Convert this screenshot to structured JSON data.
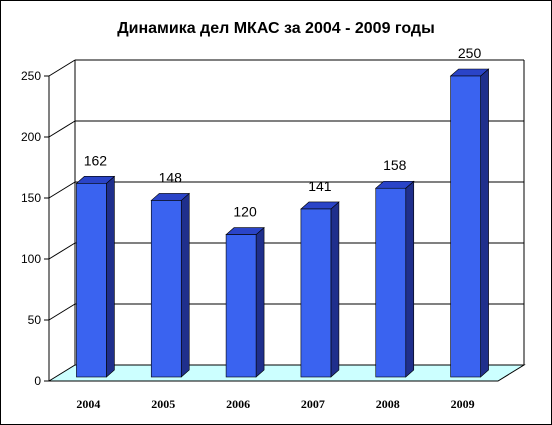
{
  "chart_data": {
    "type": "bar",
    "title": "Динамика дел МКАС за 2004 - 2009 годы",
    "categories": [
      "2004",
      "2005",
      "2006",
      "2007",
      "2008",
      "2009"
    ],
    "values": [
      162,
      148,
      120,
      141,
      158,
      250
    ],
    "data_labels": [
      "162",
      "148",
      "120",
      "141",
      "158",
      "250"
    ],
    "y_ticks": [
      "0",
      "50",
      "100",
      "150",
      "200",
      "250"
    ],
    "ylim": [
      0,
      250
    ],
    "xlabel": "",
    "ylabel": "",
    "grid": true,
    "legend": "none",
    "three_d": true,
    "colors": {
      "bar_front": "#3a63f0",
      "bar_side": "#1f2f8c",
      "bar_top": "#2a44c8",
      "floor": "#ccffff"
    }
  }
}
